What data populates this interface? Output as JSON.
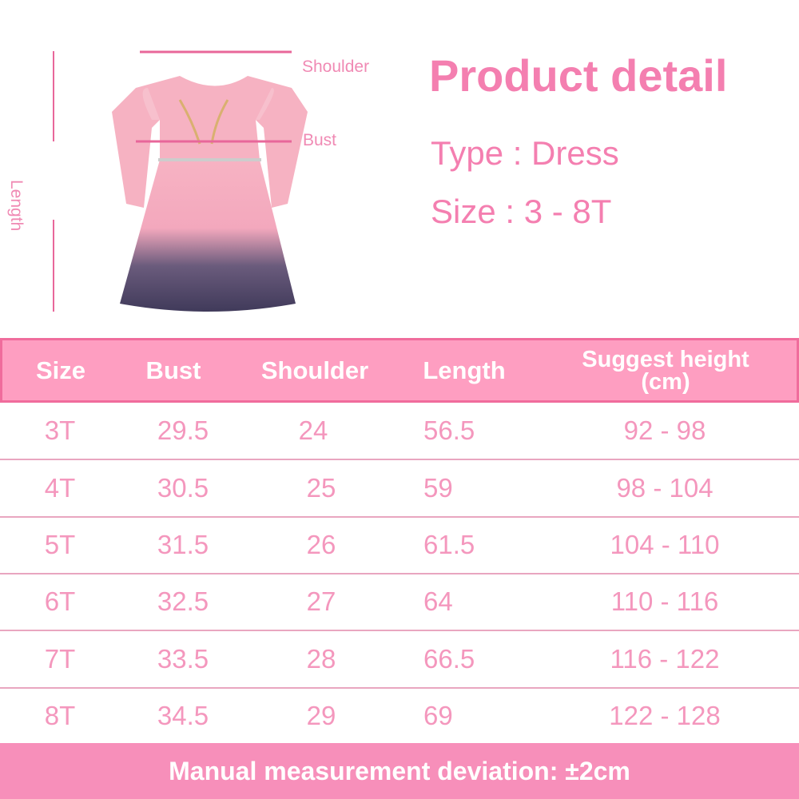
{
  "diagram": {
    "shoulder_label": "Shoulder",
    "bust_label": "Bust",
    "length_label": "Length",
    "line_color": "#e8679a"
  },
  "product": {
    "title": "Product detail",
    "type": "Type : Dress",
    "size": "Size : 3 - 8T"
  },
  "table": {
    "headers": [
      "Size",
      "Bust",
      "Shoulder",
      "Length",
      "Suggest height (cm)"
    ],
    "header_line1": "Suggest height",
    "header_line2": "(cm)",
    "rows": [
      [
        "3T",
        "29.5",
        "24",
        "56.5",
        "92 - 98"
      ],
      [
        "4T",
        "30.5",
        "25",
        "59",
        "98 - 104"
      ],
      [
        "5T",
        "31.5",
        "26",
        "61.5",
        "104 - 110"
      ],
      [
        "6T",
        "32.5",
        "27",
        "64",
        "110 - 116"
      ],
      [
        "7T",
        "33.5",
        "28",
        "66.5",
        "116 - 122"
      ],
      [
        "8T",
        "34.5",
        "29",
        "69",
        "122 - 128"
      ]
    ]
  },
  "footer": {
    "note": "Manual measurement deviation: ±2cm"
  },
  "colors": {
    "header_bg": "#fe9ec1",
    "header_border": "#f06c9c",
    "text_pink": "#f497bd",
    "footer_bg": "#f78fba"
  }
}
